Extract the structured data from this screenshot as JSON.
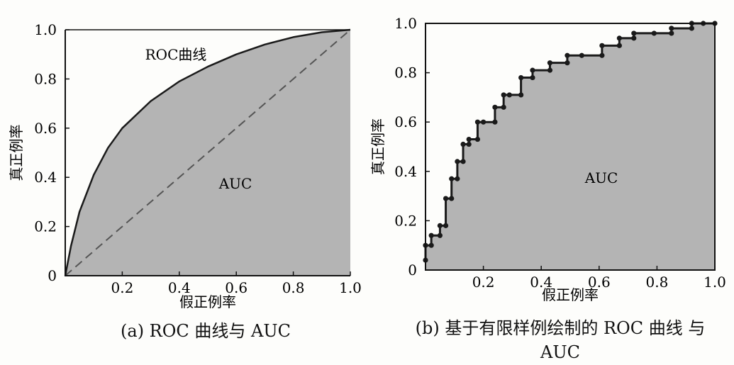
{
  "colors": {
    "fill": "#b4b4b4",
    "axis": "#111111",
    "curve": "#1a1a1a",
    "diagonal": "#555555"
  },
  "chart_data": [
    {
      "type": "area",
      "curve_label": "ROC曲线",
      "area_label": "AUC",
      "xlabel": "假正例率",
      "ylabel": "真正例率",
      "xlim": [
        0,
        1
      ],
      "ylim": [
        0,
        1
      ],
      "x_ticks": [
        "0.2",
        "0.4",
        "0.6",
        "0.8",
        "1.0"
      ],
      "y_ticks": [
        "0",
        "0.2",
        "0.4",
        "0.6",
        "0.8",
        "1.0"
      ],
      "diagonal": true,
      "series": [
        {
          "x": [
            0,
            0.02,
            0.05,
            0.1,
            0.15,
            0.2,
            0.3,
            0.4,
            0.5,
            0.6,
            0.7,
            0.8,
            0.9,
            1.0
          ],
          "y": [
            0,
            0.12,
            0.26,
            0.41,
            0.52,
            0.6,
            0.71,
            0.79,
            0.85,
            0.9,
            0.94,
            0.97,
            0.99,
            1.0
          ]
        }
      ],
      "caption": "(a) ROC 曲线与 AUC"
    },
    {
      "type": "line",
      "area_label": "AUC",
      "xlabel": "假正例率",
      "ylabel": "真正例率",
      "xlim": [
        0,
        1
      ],
      "ylim": [
        0,
        1
      ],
      "x_ticks": [
        "0.2",
        "0.4",
        "0.6",
        "0.8",
        "1.0"
      ],
      "y_ticks": [
        "0",
        "0.2",
        "0.4",
        "0.6",
        "0.8",
        "1.0"
      ],
      "series": [
        {
          "x": [
            0,
            0,
            0.02,
            0.02,
            0.05,
            0.05,
            0.07,
            0.07,
            0.09,
            0.09,
            0.11,
            0.11,
            0.13,
            0.13,
            0.15,
            0.15,
            0.18,
            0.18,
            0.2,
            0.2,
            0.24,
            0.24,
            0.27,
            0.27,
            0.29,
            0.29,
            0.33,
            0.33,
            0.37,
            0.37,
            0.43,
            0.43,
            0.49,
            0.49,
            0.54,
            0.54,
            0.61,
            0.61,
            0.67,
            0.67,
            0.72,
            0.72,
            0.79,
            0.79,
            0.85,
            0.85,
            0.92,
            0.92,
            0.96,
            1.0
          ],
          "y": [
            0.04,
            0.1,
            0.1,
            0.14,
            0.14,
            0.18,
            0.18,
            0.29,
            0.29,
            0.37,
            0.37,
            0.44,
            0.44,
            0.51,
            0.51,
            0.53,
            0.53,
            0.6,
            0.6,
            0.6,
            0.6,
            0.66,
            0.66,
            0.71,
            0.71,
            0.71,
            0.71,
            0.78,
            0.78,
            0.81,
            0.81,
            0.84,
            0.84,
            0.87,
            0.87,
            0.87,
            0.87,
            0.91,
            0.91,
            0.94,
            0.94,
            0.96,
            0.96,
            0.96,
            0.96,
            0.98,
            0.98,
            1.0,
            1.0,
            1.0
          ]
        }
      ],
      "caption": "(b) 基于有限样例绘制的 ROC 曲线 与 AUC"
    }
  ]
}
